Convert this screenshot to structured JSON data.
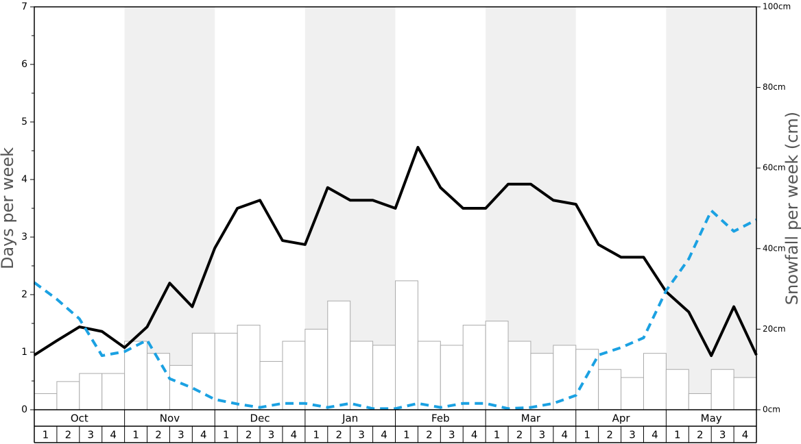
{
  "chart_data": {
    "type": "bar-line",
    "months": [
      "Oct",
      "Nov",
      "Dec",
      "Jan",
      "Feb",
      "Mar",
      "Apr",
      "May"
    ],
    "week_labels": [
      "1",
      "2",
      "3",
      "4"
    ],
    "ylabel": "Days per week",
    "y2label": "Snowfall per week (cm)",
    "ylim": [
      0,
      7
    ],
    "yticks": [
      0,
      1,
      2,
      3,
      4,
      5,
      6,
      7
    ],
    "y2lim": [
      0,
      100
    ],
    "y2ticks": [
      {
        "value": 0,
        "label": "0cm"
      },
      {
        "value": 20,
        "label": "20cm"
      },
      {
        "value": 40,
        "label": "40cm"
      },
      {
        "value": 60,
        "label": "60cm"
      },
      {
        "value": 80,
        "label": "80cm"
      },
      {
        "value": 100,
        "label": "100cm"
      }
    ],
    "shade_color": "#f0f0f0",
    "series": [
      {
        "type": "bar",
        "axis": "y2",
        "color": "#ffffff",
        "values": [
          4,
          7,
          9,
          9,
          17,
          14,
          11,
          19,
          19,
          21,
          12,
          17,
          20,
          27,
          17,
          16,
          32,
          17,
          16,
          21,
          22,
          17,
          14,
          16,
          15,
          10,
          8,
          14,
          10,
          4,
          10,
          8
        ]
      },
      {
        "type": "line",
        "color": "#000000",
        "values": [
          0.95,
          1.2,
          1.44,
          1.36,
          1.08,
          1.44,
          2.2,
          1.79,
          2.81,
          3.5,
          3.64,
          2.94,
          2.87,
          3.86,
          3.64,
          3.64,
          3.5,
          4.56,
          3.86,
          3.5,
          3.5,
          3.92,
          3.92,
          3.64,
          3.57,
          2.87,
          2.65,
          2.65,
          2.05,
          1.7,
          0.94,
          1.79,
          0.95
        ]
      },
      {
        "type": "dashed-line",
        "color": "#1ba1e2",
        "values": [
          2.21,
          1.92,
          1.58,
          0.94,
          1.01,
          1.21,
          0.54,
          0.38,
          0.18,
          0.1,
          0.04,
          0.11,
          0.11,
          0.04,
          0.11,
          0.02,
          0.02,
          0.11,
          0.04,
          0.11,
          0.11,
          0.02,
          0.04,
          0.11,
          0.25,
          0.95,
          1.08,
          1.25,
          2.07,
          2.62,
          3.46,
          3.1,
          3.3
        ]
      }
    ]
  }
}
